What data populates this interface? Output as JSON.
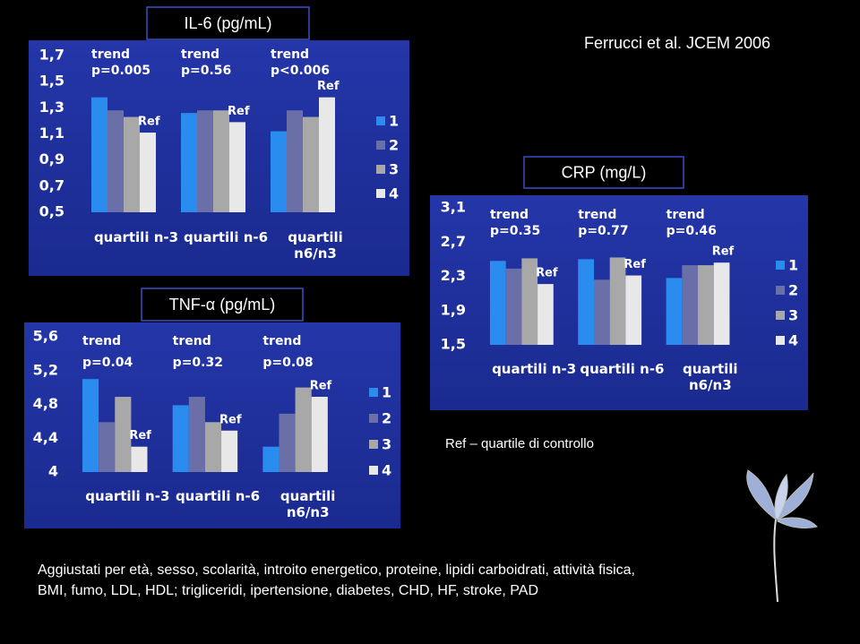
{
  "citation": "Ferrucci et al. JCEM 2006",
  "note": "Ref – quartile di controllo",
  "footnote": [
    "Aggiustati per età, sesso, scolarità, introito energetico, proteine, lipidi carboidrati, attività fisica,",
    "BMI, fumo, LDL, HDL; trigliceridi, ipertensione, diabetes, CHD, HF, stroke, PAD"
  ],
  "chart_data": [
    {
      "type": "bar",
      "title": "IL-6 (pg/mL)",
      "categories": [
        "quartili n-3",
        "quartili n-6",
        "quartili n6/n3"
      ],
      "series": [
        {
          "name": "1",
          "color": "#2b8cf0",
          "values": [
            1.38,
            1.26,
            1.12
          ]
        },
        {
          "name": "2",
          "color": "#6b6fa8",
          "values": [
            1.28,
            1.28,
            1.28
          ]
        },
        {
          "name": "3",
          "color": "#a8a8a8",
          "values": [
            1.23,
            1.28,
            1.23
          ]
        },
        {
          "name": "4",
          "color": "#e8e8e8",
          "values": [
            1.11,
            1.19,
            1.38
          ]
        }
      ],
      "ylim": [
        0.5,
        1.7
      ],
      "yticks": [
        {
          "value": 0.5,
          "label": "0,5"
        },
        {
          "value": 0.7,
          "label": "0,7"
        },
        {
          "value": 0.9,
          "label": "0,9"
        },
        {
          "value": 1.1,
          "label": "1,1"
        },
        {
          "value": 1.3,
          "label": "1,3"
        },
        {
          "value": 1.5,
          "label": "1,5"
        },
        {
          "value": 1.7,
          "label": "1,7"
        }
      ],
      "trend_labels": [
        [
          "trend",
          "p=0.005"
        ],
        [
          "trend",
          "p=0.56"
        ],
        [
          "trend",
          "p<0.006"
        ]
      ],
      "ref_labels": [
        "Ref",
        "Ref",
        "Ref"
      ]
    },
    {
      "type": "bar",
      "title": "CRP (mg/L)",
      "categories": [
        "quartili n-3",
        "quartili n-6",
        "quartili n6/n3"
      ],
      "series": [
        {
          "name": "1",
          "color": "#2b8cf0",
          "values": [
            2.48,
            2.5,
            2.28
          ]
        },
        {
          "name": "2",
          "color": "#6b6fa8",
          "values": [
            2.39,
            2.26,
            2.43
          ]
        },
        {
          "name": "3",
          "color": "#a8a8a8",
          "values": [
            2.51,
            2.52,
            2.43
          ]
        },
        {
          "name": "4",
          "color": "#e8e8e8",
          "values": [
            2.21,
            2.31,
            2.46
          ]
        }
      ],
      "ylim": [
        1.5,
        3.1
      ],
      "yticks": [
        {
          "value": 1.5,
          "label": "1,5"
        },
        {
          "value": 1.9,
          "label": "1,9"
        },
        {
          "value": 2.3,
          "label": "2,3"
        },
        {
          "value": 2.7,
          "label": "2,7"
        },
        {
          "value": 3.1,
          "label": "3,1"
        }
      ],
      "trend_labels": [
        [
          "trend",
          "p=0.35"
        ],
        [
          "trend",
          "p=0.77"
        ],
        [
          "trend",
          "p=0.46"
        ]
      ],
      "ref_labels": [
        "Ref",
        "Ref",
        "Ref"
      ]
    },
    {
      "type": "bar",
      "title": "TNF-α (pg/mL)",
      "categories": [
        "quartili n-3",
        "quartili n-6",
        "quartili n6/n3"
      ],
      "series": [
        {
          "name": "1",
          "color": "#2b8cf0",
          "values": [
            5.1,
            4.79,
            4.3
          ]
        },
        {
          "name": "2",
          "color": "#6b6fa8",
          "values": [
            4.59,
            4.89,
            4.69
          ]
        },
        {
          "name": "3",
          "color": "#a8a8a8",
          "values": [
            4.89,
            4.59,
            5.0
          ]
        },
        {
          "name": "4",
          "color": "#e8e8e8",
          "values": [
            4.3,
            4.49,
            4.89
          ]
        }
      ],
      "ylim": [
        4,
        5.6
      ],
      "yticks": [
        4,
        {
          "value": 4.4,
          "label": "4,4"
        },
        {
          "value": 4.8,
          "label": "4,8"
        },
        {
          "value": 5.2,
          "label": "5,2"
        },
        {
          "value": 5.6,
          "label": "5,6"
        }
      ],
      "trend_labels": [
        [
          "trend",
          "p=0.04"
        ],
        [
          "trend",
          "p=0.32"
        ],
        [
          "trend",
          "p=0.08"
        ]
      ],
      "ref_labels": [
        "Ref",
        "Ref",
        "Ref"
      ]
    }
  ]
}
